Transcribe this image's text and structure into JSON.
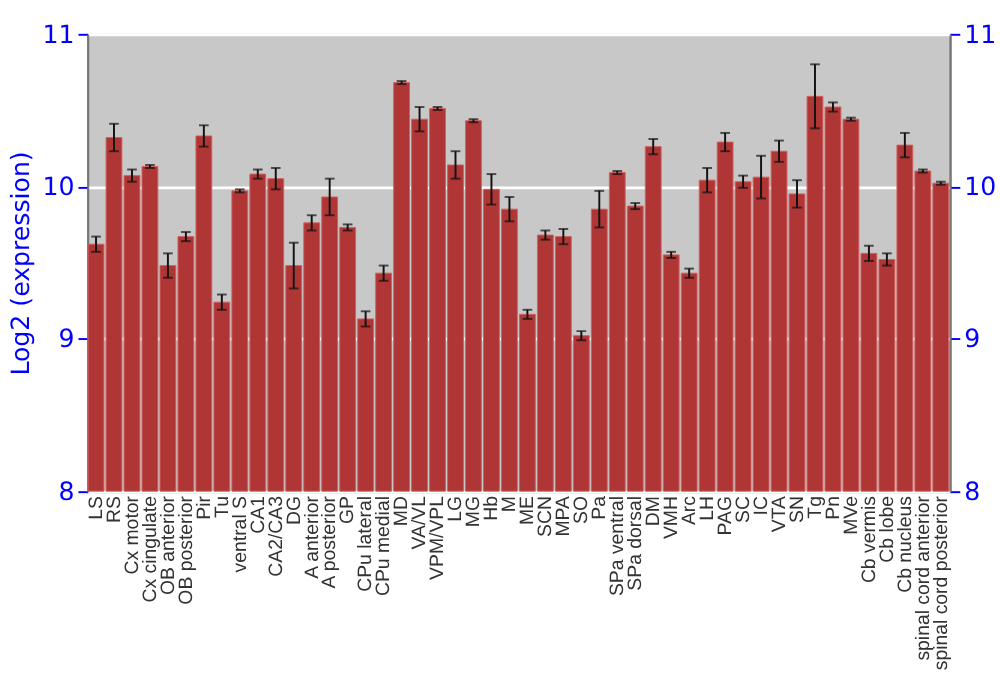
{
  "chart_data": {
    "type": "bar",
    "ylabel": "Log2 (expression)",
    "categories": [
      "LS",
      "RS",
      "Cx motor",
      "Cx cingulate",
      "OB anterior",
      "OB posterior",
      "Pir",
      "Tu",
      "ventral S",
      "CA1",
      "CA2/CA3",
      "DG",
      "A anterior",
      "A posterior",
      "GP",
      "CPu lateral",
      "CPu medial",
      "MD",
      "VA/VL",
      "VPM/VPL",
      "LG",
      "MG",
      "Hb",
      "M",
      "ME",
      "SCN",
      "MPA",
      "SO",
      "Pa",
      "SPa ventral",
      "SPa dorsal",
      "DM",
      "VMH",
      "Arc",
      "LH",
      "PAG",
      "SC",
      "IC",
      "VTA",
      "SN",
      "Tg",
      "Pn",
      "MVe",
      "Cb vermis",
      "Cb lobe",
      "Cb nucleus",
      "spinal cord anterior",
      "spinal cord posterior"
    ],
    "values": [
      9.62,
      10.32,
      10.07,
      10.13,
      9.48,
      9.67,
      10.33,
      9.24,
      9.97,
      10.08,
      10.05,
      9.48,
      9.76,
      9.93,
      9.73,
      9.13,
      9.43,
      10.68,
      10.44,
      10.51,
      10.14,
      10.43,
      9.98,
      9.85,
      9.16,
      9.68,
      9.67,
      9.02,
      9.85,
      10.09,
      9.87,
      10.26,
      9.55,
      9.43,
      10.04,
      10.29,
      10.03,
      10.06,
      10.23,
      9.95,
      10.59,
      10.52,
      10.44,
      9.56,
      9.52,
      10.27,
      10.1,
      10.02
    ],
    "errors": [
      0.05,
      0.09,
      0.04,
      0.01,
      0.08,
      0.03,
      0.07,
      0.05,
      0.01,
      0.03,
      0.07,
      0.15,
      0.05,
      0.12,
      0.02,
      0.05,
      0.05,
      0.01,
      0.08,
      0.01,
      0.09,
      0.01,
      0.1,
      0.08,
      0.03,
      0.03,
      0.05,
      0.03,
      0.12,
      0.01,
      0.02,
      0.05,
      0.02,
      0.03,
      0.08,
      0.06,
      0.04,
      0.14,
      0.07,
      0.09,
      0.21,
      0.03,
      0.01,
      0.05,
      0.04,
      0.08,
      0.01,
      0.01
    ],
    "color": "#b03535",
    "ylim": [
      8,
      11
    ],
    "yticks": [
      8,
      9,
      10,
      11
    ],
    "y2lim": [
      8,
      11
    ],
    "y2ticks": [
      8,
      9,
      10,
      11
    ],
    "grid": "y"
  }
}
